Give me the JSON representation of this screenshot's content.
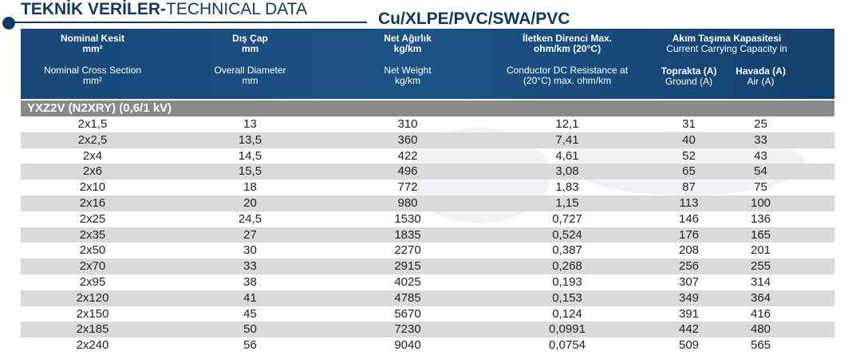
{
  "title": {
    "bold": "TEKNİK VERİLER-",
    "normal": "TECHNICAL DATA"
  },
  "subtitle": "Cu/XLPE/PVC/SWA/PVC",
  "colors": {
    "header": "#1c5285",
    "title": "#13385f",
    "group": "#898989",
    "alt_row": "#dadada"
  },
  "headers": {
    "section": {
      "tr": "Nominal Kesit",
      "tr_unit": "mm²",
      "en": "Nominal Cross Section",
      "en_unit": "mm²"
    },
    "diameter": {
      "tr": "Dış Çap",
      "tr_unit": "mm",
      "en": "Overall Diameter",
      "en_unit": "mm"
    },
    "weight": {
      "tr": "Net Ağırlık",
      "tr_unit": "kg/km",
      "en": "Net Weight",
      "en_unit": "kg/km"
    },
    "resistance": {
      "tr": "İletken Direnci Max.",
      "tr_unit": "ohm/km (20°C)",
      "en": "Conductor DC Resistance at",
      "en_unit": "(20°C) max. ohm/km"
    },
    "capacity": {
      "tr": "Akım Taşıma Kapasitesi",
      "en": "Current Carrying Capacity in"
    },
    "ground": {
      "tr": "Toprakta (A)",
      "en": "Ground (A)"
    },
    "air": {
      "tr": "Havada (A)",
      "en": "Air (A)"
    }
  },
  "group_label": "YXZ2V (N2XRY) (0,6/1 kV)",
  "rows": [
    [
      "2x1,5",
      "13",
      "310",
      "12,1",
      "31",
      "25"
    ],
    [
      "2x2,5",
      "13,5",
      "360",
      "7,41",
      "40",
      "33"
    ],
    [
      "2x4",
      "14,5",
      "422",
      "4,61",
      "52",
      "43"
    ],
    [
      "2x6",
      "15,5",
      "496",
      "3,08",
      "65",
      "54"
    ],
    [
      "2x10",
      "18",
      "772",
      "1,83",
      "87",
      "75"
    ],
    [
      "2x16",
      "20",
      "980",
      "1,15",
      "113",
      "100"
    ],
    [
      "2x25",
      "24,5",
      "1530",
      "0,727",
      "146",
      "136"
    ],
    [
      "2x35",
      "27",
      "1835",
      "0,524",
      "176",
      "165"
    ],
    [
      "2x50",
      "30",
      "2270",
      "0,387",
      "208",
      "201"
    ],
    [
      "2x70",
      "33",
      "2915",
      "0,268",
      "256",
      "255"
    ],
    [
      "2x95",
      "38",
      "4025",
      "0,193",
      "307",
      "314"
    ],
    [
      "2x120",
      "41",
      "4785",
      "0,153",
      "349",
      "364"
    ],
    [
      "2x150",
      "45",
      "5670",
      "0,124",
      "391",
      "416"
    ],
    [
      "2x185",
      "50",
      "7230",
      "0,0991",
      "442",
      "480"
    ],
    [
      "2x240",
      "56",
      "9040",
      "0,0754",
      "509",
      "565"
    ]
  ]
}
